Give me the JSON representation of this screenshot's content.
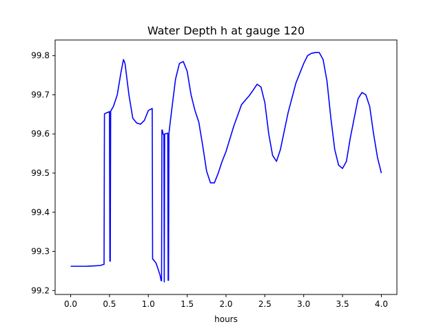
{
  "chart_data": {
    "type": "line",
    "title": "Water Depth h at gauge 120",
    "xlabel": "hours",
    "ylabel": "",
    "xlim": [
      -0.2,
      4.2
    ],
    "ylim": [
      99.19,
      99.84
    ],
    "xticks": [
      0.0,
      0.5,
      1.0,
      1.5,
      2.0,
      2.5,
      3.0,
      3.5,
      4.0
    ],
    "xtick_labels": [
      "0.0",
      "0.5",
      "1.0",
      "1.5",
      "2.0",
      "2.5",
      "3.0",
      "3.5",
      "4.0"
    ],
    "yticks": [
      99.2,
      99.3,
      99.4,
      99.5,
      99.6,
      99.7,
      99.8
    ],
    "ytick_labels": [
      "99.2",
      "99.3",
      "99.4",
      "99.5",
      "99.6",
      "99.7",
      "99.8"
    ],
    "grid": false,
    "line_color": "#0000ff",
    "series": [
      {
        "x": [
          0.0,
          0.1,
          0.2,
          0.3,
          0.38,
          0.43,
          0.435,
          0.44,
          0.5,
          0.505,
          0.51,
          0.515,
          0.52,
          0.55,
          0.6,
          0.65,
          0.68,
          0.7,
          0.75,
          0.8,
          0.85,
          0.9,
          0.95,
          1.0,
          1.05,
          1.055,
          1.06,
          1.1,
          1.15,
          1.165,
          1.17,
          1.175,
          1.18,
          1.19,
          1.2,
          1.205,
          1.21,
          1.25,
          1.255,
          1.26,
          1.265,
          1.27,
          1.3,
          1.35,
          1.4,
          1.45,
          1.5,
          1.55,
          1.6,
          1.65,
          1.7,
          1.75,
          1.8,
          1.85,
          1.9,
          1.95,
          2.0,
          2.1,
          2.2,
          2.3,
          2.35,
          2.4,
          2.45,
          2.5,
          2.55,
          2.6,
          2.65,
          2.7,
          2.8,
          2.9,
          3.0,
          3.05,
          3.1,
          3.15,
          3.2,
          3.25,
          3.3,
          3.35,
          3.4,
          3.45,
          3.5,
          3.55,
          3.6,
          3.7,
          3.75,
          3.8,
          3.85,
          3.9,
          3.95,
          4.0
        ],
        "y": [
          99.262,
          99.262,
          99.262,
          99.263,
          99.264,
          99.267,
          99.65,
          99.652,
          99.657,
          99.275,
          99.275,
          99.658,
          99.66,
          99.67,
          99.7,
          99.76,
          99.79,
          99.78,
          99.7,
          99.64,
          99.628,
          99.625,
          99.635,
          99.66,
          99.665,
          99.28,
          99.28,
          99.27,
          99.24,
          99.225,
          99.225,
          99.61,
          99.61,
          99.6,
          99.598,
          99.222,
          99.6,
          99.602,
          99.226,
          99.226,
          99.6,
          99.61,
          99.66,
          99.74,
          99.78,
          99.785,
          99.76,
          99.7,
          99.66,
          99.63,
          99.57,
          99.505,
          99.475,
          99.475,
          99.5,
          99.53,
          99.555,
          99.62,
          99.675,
          99.698,
          99.712,
          99.727,
          99.72,
          99.68,
          99.6,
          99.545,
          99.53,
          99.56,
          99.655,
          99.73,
          99.78,
          99.8,
          99.806,
          99.808,
          99.808,
          99.79,
          99.735,
          99.64,
          99.56,
          99.52,
          99.512,
          99.53,
          99.59,
          99.69,
          99.706,
          99.7,
          99.67,
          99.6,
          99.54,
          99.5
        ]
      }
    ]
  }
}
